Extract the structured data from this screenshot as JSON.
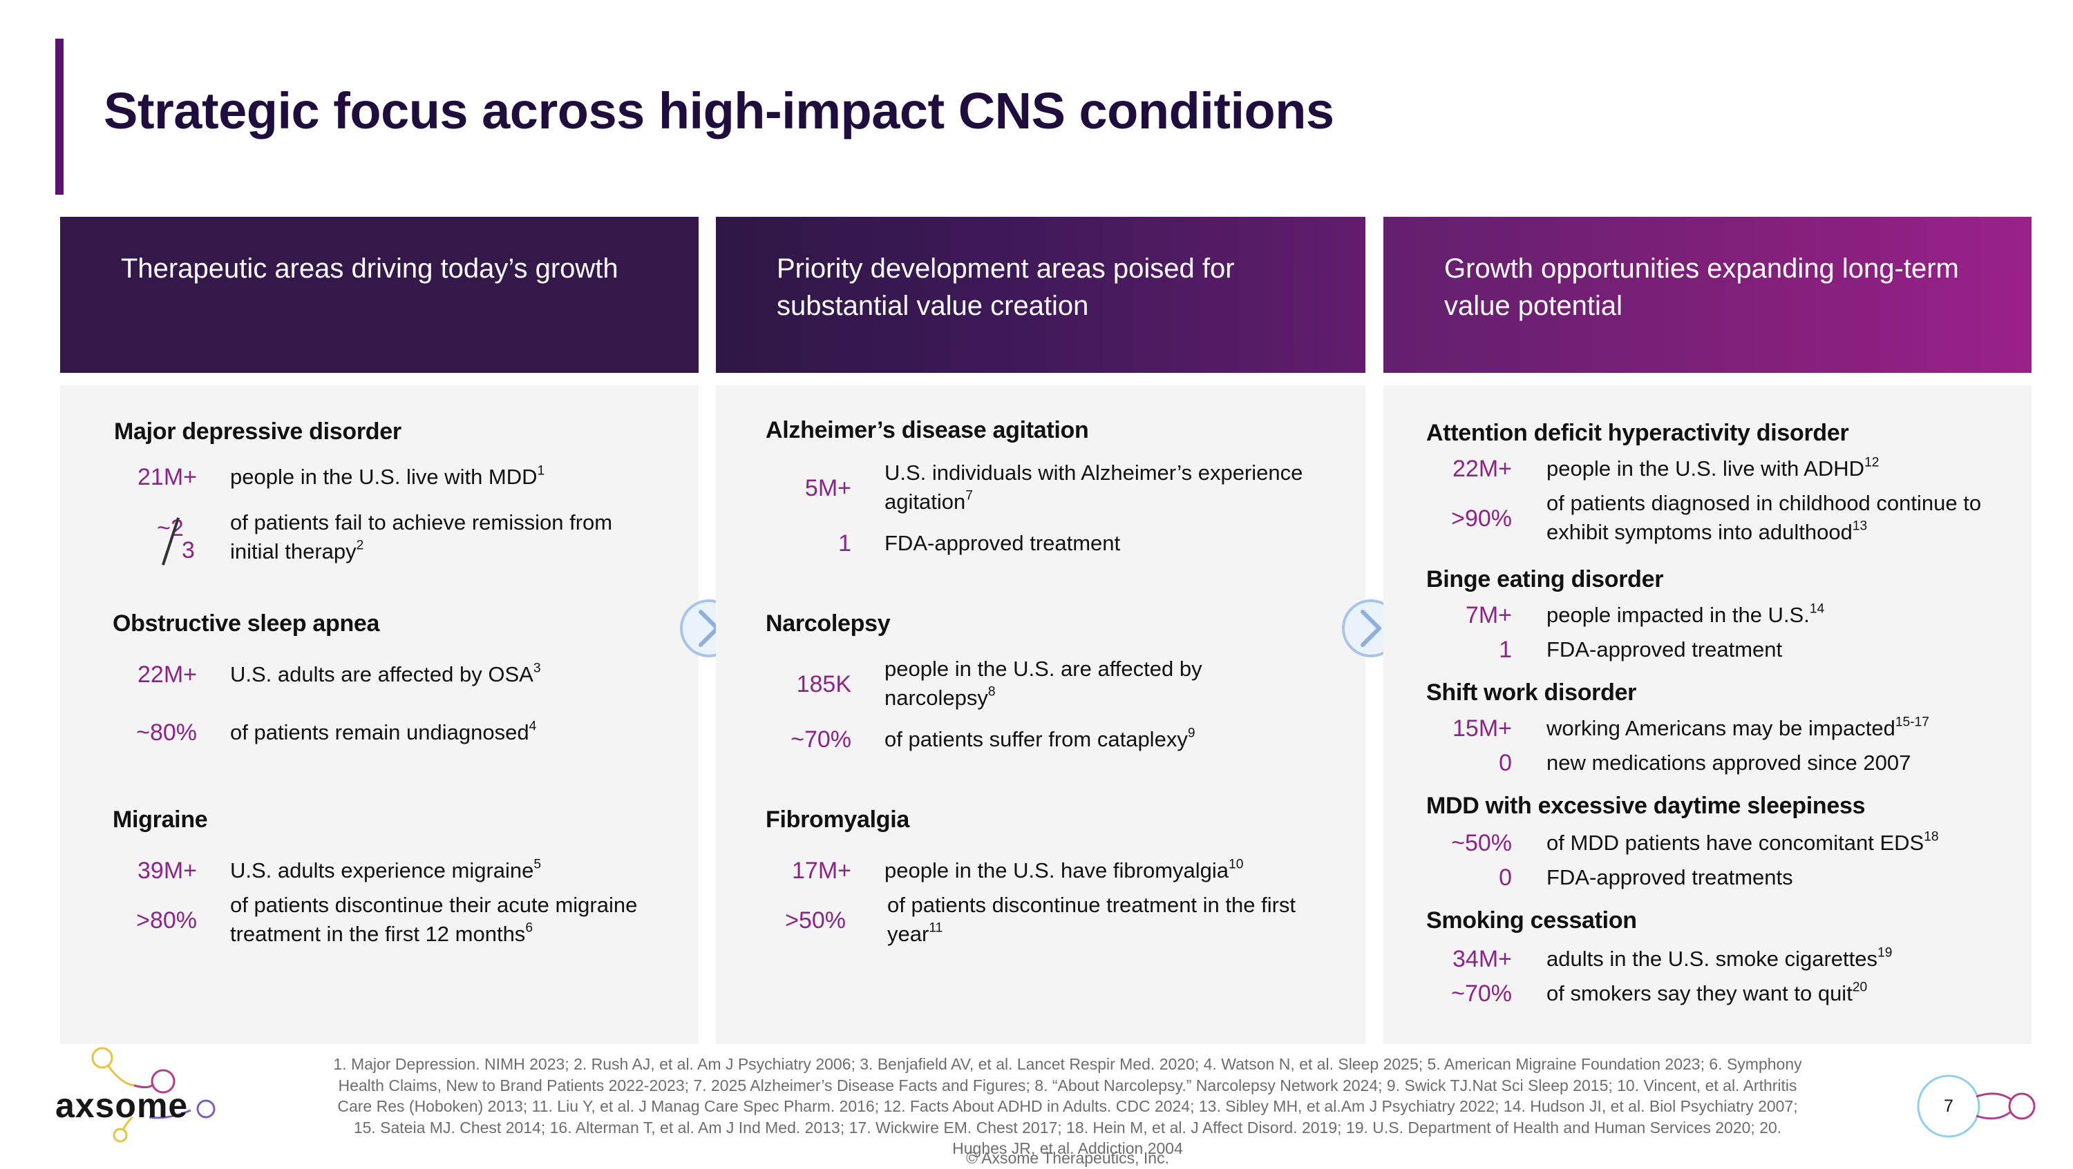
{
  "title": "Strategic focus across high-impact CNS conditions",
  "columns": [
    {
      "header": "Therapeutic areas driving today’s growth",
      "sections": [
        {
          "title": "Major depressive disorder",
          "stats": [
            {
              "value": "21M+",
              "text": "people in the U.S. live with MDD",
              "sup": "1"
            },
            {
              "value_prefix": "~",
              "value_num": "2",
              "value_den": "3",
              "text": "of patients fail to achieve remission from initial therapy",
              "sup": "2"
            }
          ]
        },
        {
          "title": "Obstructive sleep apnea",
          "stats": [
            {
              "value": "22M+",
              "text": "U.S. adults are affected by OSA",
              "sup": "3"
            },
            {
              "value": "~80%",
              "text": "of patients remain undiagnosed",
              "sup": "4"
            }
          ]
        },
        {
          "title": "Migraine",
          "stats": [
            {
              "value": "39M+",
              "text": "U.S. adults experience migraine",
              "sup": "5"
            },
            {
              "value": ">80%",
              "text": "of patients discontinue their acute migraine treatment in the first 12 months",
              "sup": "6"
            }
          ]
        }
      ]
    },
    {
      "header": "Priority development areas poised for substantial value creation",
      "sections": [
        {
          "title": "Alzheimer’s disease agitation",
          "stats": [
            {
              "value": "5M+",
              "text": "U.S. individuals with Alzheimer’s experience agitation",
              "sup": "7"
            },
            {
              "value": "1",
              "text": "FDA-approved treatment",
              "sup": ""
            }
          ]
        },
        {
          "title": "Narcolepsy",
          "stats": [
            {
              "value": "185K",
              "text": "people in the U.S. are affected by narcolepsy",
              "sup": "8"
            },
            {
              "value": "~70%",
              "text": "of patients suffer from cataplexy",
              "sup": "9"
            }
          ]
        },
        {
          "title": "Fibromyalgia",
          "stats": [
            {
              "value": "17M+",
              "text": "people in the U.S. have fibromyalgia",
              "sup": "10"
            },
            {
              "value": ">50%",
              "text": "of patients discontinue treatment in the first year",
              "sup": "11"
            }
          ]
        }
      ]
    },
    {
      "header": "Growth opportunities expanding long-term value potential",
      "sections": [
        {
          "title": "Attention deficit hyperactivity disorder",
          "stats": [
            {
              "value": "22M+",
              "text": "people in the U.S. live with ADHD",
              "sup": "12"
            },
            {
              "value": ">90%",
              "text": "of patients diagnosed in childhood continue to exhibit symptoms into adulthood",
              "sup": "13"
            }
          ]
        },
        {
          "title": "Binge eating disorder",
          "stats": [
            {
              "value": "7M+",
              "text": "people impacted in the U.S.",
              "sup": "14"
            },
            {
              "value": "1",
              "text": "FDA-approved treatment",
              "sup": ""
            }
          ]
        },
        {
          "title": "Shift work disorder",
          "stats": [
            {
              "value": "15M+",
              "text": "working Americans may be impacted",
              "sup": "15-17"
            },
            {
              "value": "0",
              "text": "new medications approved since 2007",
              "sup": ""
            }
          ]
        },
        {
          "title": "MDD with excessive daytime sleepiness",
          "stats": [
            {
              "value": "~50%",
              "text": "of MDD patients have concomitant EDS",
              "sup": "18"
            },
            {
              "value": "0",
              "text": "FDA-approved treatments",
              "sup": ""
            }
          ]
        },
        {
          "title": "Smoking cessation",
          "stats": [
            {
              "value": "34M+",
              "text": "adults in the U.S. smoke cigarettes",
              "sup": "19"
            },
            {
              "value": "~70%",
              "text": "of smokers say they want to quit",
              "sup": "20"
            }
          ]
        }
      ]
    }
  ],
  "footnotes": {
    "line1": "1. Major Depression. NIMH 2023; 2. Rush AJ, et al. Am J Psychiatry 2006; 3. Benjafield AV, et al. Lancet Respir Med. 2020; 4. Watson N, et al. Sleep 2025; 5. American Migraine Foundation 2023; 6. Symphony",
    "line2": "Health Claims, New to Brand Patients 2022-2023; 7. 2025 Alzheimer’s Disease Facts and Figures; 8. “About Narcolepsy.” Narcolepsy Network 2024; 9. Swick TJ.Nat Sci Sleep 2015; 10. Vincent, et al. Arthritis",
    "line3": "Care Res (Hoboken) 2013; 11. Liu Y, et al. J Manag Care Spec Pharm. 2016; 12. Facts About ADHD in Adults. CDC 2024; 13. Sibley MH, et al.Am J Psychiatry 2022; 14. Hudson JI, et al. Biol Psychiatry 2007;",
    "line4": "15. Sateia MJ. Chest 2014; 16. Alterman T, et al. Am J Ind Med. 2013; 17. Wickwire EM. Chest 2017; 18. Hein M, et al. J Affect Disord. 2019; 19. U.S. Department of Health and Human Services 2020; 20.",
    "line5": "Hughes JR, et al. Addiction 2004"
  },
  "copyright": "© Axsome Therapeutics, Inc.",
  "logo_text": "axsome",
  "page_number": "7",
  "colors": {
    "accent": "#5a1470",
    "stat": "#8a2486",
    "dark": "#331849",
    "magenta": "#9a218a"
  }
}
